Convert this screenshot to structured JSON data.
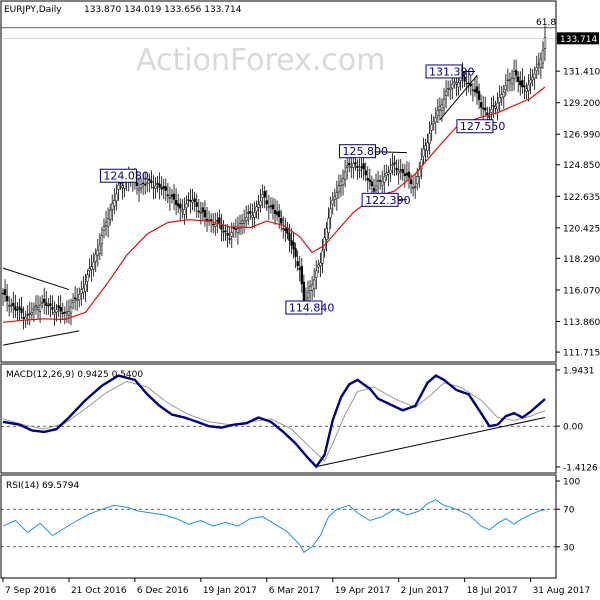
{
  "chart_data": [
    {
      "type": "candlestick",
      "title": "EURJPY,Daily",
      "ohlc": "133.870 134.019 133.656 133.714",
      "watermark": "ActionForex.com",
      "last_price_label": "133.714",
      "last_price": 133.714,
      "fib_label": "61.8",
      "fib_level": 134.45,
      "ylim": [
        111.3,
        135.7
      ],
      "yticks": [
        "133.714",
        "131.410",
        "129.200",
        "126.990",
        "124.850",
        "122.635",
        "120.425",
        "118.290",
        "116.070",
        "113.860",
        "111.715"
      ],
      "ytick_values": [
        133.714,
        131.41,
        129.2,
        126.99,
        124.85,
        122.635,
        120.425,
        118.29,
        116.07,
        113.86,
        111.715
      ],
      "xtick_labels": [
        "7 Sep 2016",
        "21 Oct 2016",
        "6 Dec 2016",
        "19 Jan 2017",
        "6 Mar 2017",
        "19 Apr 2017",
        "2 Jun 2017",
        "18 Jul 2017",
        "31 Aug 2017"
      ],
      "xtick_bars": [
        0,
        32,
        64,
        96,
        128,
        160,
        192,
        224,
        256
      ],
      "annotations": [
        {
          "label": "124.080",
          "value": 124.08,
          "bar": 56
        },
        {
          "label": "114.840",
          "value": 114.84,
          "bar": 146
        },
        {
          "label": "125.800",
          "value": 125.8,
          "bar": 172
        },
        {
          "label": "122.390",
          "value": 122.39,
          "bar": 183
        },
        {
          "label": "131.390",
          "value": 131.39,
          "bar": 214
        },
        {
          "label": "127.550",
          "value": 127.55,
          "bar": 229
        }
      ],
      "series": [
        {
          "name": "price",
          "color": "#000000"
        },
        {
          "name": "moving_average",
          "color": "#e01010"
        }
      ],
      "close_path": [
        [
          0,
          115.7
        ],
        [
          6,
          114.7
        ],
        [
          12,
          114.2
        ],
        [
          18,
          115.2
        ],
        [
          24,
          114.8
        ],
        [
          30,
          114.4
        ],
        [
          36,
          115.5
        ],
        [
          40,
          116.6
        ],
        [
          46,
          118.9
        ],
        [
          52,
          121.7
        ],
        [
          56,
          123.2
        ],
        [
          60,
          123.9
        ],
        [
          66,
          123.4
        ],
        [
          72,
          123.6
        ],
        [
          80,
          122.9
        ],
        [
          86,
          121.7
        ],
        [
          92,
          122.4
        ],
        [
          98,
          121.1
        ],
        [
          104,
          120.7
        ],
        [
          110,
          119.8
        ],
        [
          116,
          120.9
        ],
        [
          122,
          121.6
        ],
        [
          126,
          122.6
        ],
        [
          130,
          121.9
        ],
        [
          136,
          120.6
        ],
        [
          140,
          119.2
        ],
        [
          144,
          117.6
        ],
        [
          146,
          115.1
        ],
        [
          150,
          116.6
        ],
        [
          154,
          118.0
        ],
        [
          158,
          121.3
        ],
        [
          162,
          123.0
        ],
        [
          166,
          124.4
        ],
        [
          170,
          125.0
        ],
        [
          176,
          124.2
        ],
        [
          180,
          123.1
        ],
        [
          184,
          123.9
        ],
        [
          190,
          124.8
        ],
        [
          196,
          124.0
        ],
        [
          200,
          123.3
        ],
        [
          204,
          125.8
        ],
        [
          208,
          127.5
        ],
        [
          214,
          129.6
        ],
        [
          218,
          130.5
        ],
        [
          222,
          130.9
        ],
        [
          228,
          130.3
        ],
        [
          232,
          129.0
        ],
        [
          236,
          128.3
        ],
        [
          240,
          129.3
        ],
        [
          244,
          130.3
        ],
        [
          248,
          131.4
        ],
        [
          252,
          130.1
        ],
        [
          256,
          130.7
        ],
        [
          260,
          131.8
        ],
        [
          263,
          133.7
        ]
      ],
      "ma_path": [
        [
          0,
          113.8
        ],
        [
          10,
          113.95
        ],
        [
          20,
          114.05
        ],
        [
          30,
          114.0
        ],
        [
          40,
          114.5
        ],
        [
          50,
          116.4
        ],
        [
          60,
          118.5
        ],
        [
          70,
          120.0
        ],
        [
          80,
          120.8
        ],
        [
          90,
          121.0
        ],
        [
          100,
          120.9
        ],
        [
          110,
          120.5
        ],
        [
          120,
          120.45
        ],
        [
          128,
          120.9
        ],
        [
          136,
          120.6
        ],
        [
          144,
          119.8
        ],
        [
          150,
          118.7
        ],
        [
          156,
          119.2
        ],
        [
          162,
          120.2
        ],
        [
          170,
          121.5
        ],
        [
          180,
          122.6
        ],
        [
          190,
          123.0
        ],
        [
          200,
          124.2
        ],
        [
          210,
          125.9
        ],
        [
          220,
          127.5
        ],
        [
          230,
          128.1
        ],
        [
          240,
          128.5
        ],
        [
          248,
          129.0
        ],
        [
          256,
          129.5
        ],
        [
          263,
          130.3
        ]
      ],
      "trendlines": [
        {
          "name": "triangle-upper",
          "points": [
            [
              0,
              117.6
            ],
            [
              32,
              116.1
            ]
          ]
        },
        {
          "name": "triangle-lower",
          "points": [
            [
              0,
              112.2
            ],
            [
              37,
              113.2
            ]
          ]
        },
        {
          "name": "flag-top",
          "points": [
            [
              170,
              125.8
            ],
            [
              196,
              125.7
            ]
          ]
        },
        {
          "name": "flag-bottom",
          "points": [
            [
              184,
              122.4
            ],
            [
              196,
              122.4
            ]
          ]
        },
        {
          "name": "wedge-upper",
          "points": [
            [
              212,
              131.39
            ],
            [
              229,
              131.39
            ]
          ]
        },
        {
          "name": "wedge-lower",
          "points": [
            [
              212,
              128.0
            ],
            [
              230,
              131.1
            ]
          ]
        }
      ]
    },
    {
      "type": "line",
      "title": "MACD(12,26,9) 0.9425 0.5400",
      "ylim": [
        -1.4126,
        1.9431
      ],
      "ylim_labels": [
        "-1.4126",
        "0.00",
        "1.9431"
      ],
      "series": [
        {
          "name": "macd",
          "color": "#000080",
          "points": [
            [
              0,
              0.15
            ],
            [
              8,
              0.05
            ],
            [
              14,
              -0.15
            ],
            [
              20,
              -0.2
            ],
            [
              26,
              -0.1
            ],
            [
              32,
              0.3
            ],
            [
              40,
              0.9
            ],
            [
              48,
              1.4
            ],
            [
              56,
              1.75
            ],
            [
              64,
              1.6
            ],
            [
              70,
              1.1
            ],
            [
              76,
              0.7
            ],
            [
              82,
              0.4
            ],
            [
              88,
              0.3
            ],
            [
              94,
              0.15
            ],
            [
              100,
              0.0
            ],
            [
              106,
              -0.05
            ],
            [
              112,
              0.05
            ],
            [
              118,
              0.1
            ],
            [
              124,
              0.3
            ],
            [
              130,
              0.15
            ],
            [
              136,
              -0.2
            ],
            [
              142,
              -0.6
            ],
            [
              148,
              -1.1
            ],
            [
              152,
              -1.4
            ],
            [
              156,
              -1.0
            ],
            [
              160,
              0.2
            ],
            [
              164,
              1.0
            ],
            [
              168,
              1.45
            ],
            [
              172,
              1.6
            ],
            [
              178,
              1.3
            ],
            [
              182,
              0.95
            ],
            [
              188,
              0.75
            ],
            [
              194,
              0.55
            ],
            [
              200,
              0.7
            ],
            [
              206,
              1.5
            ],
            [
              210,
              1.75
            ],
            [
              214,
              1.6
            ],
            [
              220,
              1.25
            ],
            [
              226,
              1.1
            ],
            [
              232,
              0.45
            ],
            [
              236,
              0.0
            ],
            [
              240,
              0.05
            ],
            [
              244,
              0.35
            ],
            [
              248,
              0.45
            ],
            [
              252,
              0.3
            ],
            [
              256,
              0.5
            ],
            [
              260,
              0.75
            ],
            [
              263,
              0.94
            ]
          ]
        },
        {
          "name": "signal",
          "color": "#9a9a9a",
          "points": [
            [
              0,
              0.25
            ],
            [
              10,
              0.05
            ],
            [
              20,
              -0.1
            ],
            [
              30,
              0.1
            ],
            [
              40,
              0.6
            ],
            [
              50,
              1.15
            ],
            [
              60,
              1.55
            ],
            [
              70,
              1.35
            ],
            [
              80,
              0.8
            ],
            [
              90,
              0.4
            ],
            [
              100,
              0.15
            ],
            [
              110,
              0.05
            ],
            [
              120,
              0.15
            ],
            [
              130,
              0.25
            ],
            [
              140,
              -0.1
            ],
            [
              150,
              -0.8
            ],
            [
              156,
              -1.2
            ],
            [
              160,
              -0.6
            ],
            [
              166,
              0.4
            ],
            [
              172,
              1.2
            ],
            [
              180,
              1.35
            ],
            [
              190,
              0.95
            ],
            [
              200,
              0.65
            ],
            [
              208,
              1.1
            ],
            [
              214,
              1.5
            ],
            [
              222,
              1.35
            ],
            [
              232,
              0.9
            ],
            [
              240,
              0.3
            ],
            [
              248,
              0.2
            ],
            [
              256,
              0.35
            ],
            [
              263,
              0.54
            ]
          ]
        }
      ],
      "trendlines": [
        {
          "name": "macd-support",
          "points": [
            [
              152,
              -1.4
            ],
            [
              263,
              0.3
            ]
          ]
        }
      ]
    },
    {
      "type": "line",
      "title": "RSI(14) 69.5794",
      "ylim": [
        0,
        100
      ],
      "yticks": [
        "100",
        "70",
        "30",
        "0"
      ],
      "ytick_values": [
        100,
        70,
        30,
        0
      ],
      "series": [
        {
          "name": "rsi",
          "color": "#1e90ff",
          "points": [
            [
              0,
              52
            ],
            [
              6,
              58
            ],
            [
              12,
              45
            ],
            [
              18,
              55
            ],
            [
              24,
              42
            ],
            [
              30,
              50
            ],
            [
              36,
              58
            ],
            [
              42,
              65
            ],
            [
              48,
              70
            ],
            [
              54,
              74
            ],
            [
              60,
              72
            ],
            [
              66,
              68
            ],
            [
              72,
              66
            ],
            [
              78,
              64
            ],
            [
              84,
              60
            ],
            [
              90,
              54
            ],
            [
              96,
              58
            ],
            [
              102,
              52
            ],
            [
              108,
              56
            ],
            [
              114,
              52
            ],
            [
              120,
              60
            ],
            [
              126,
              62
            ],
            [
              132,
              54
            ],
            [
              138,
              46
            ],
            [
              144,
              32
            ],
            [
              146,
              24
            ],
            [
              150,
              30
            ],
            [
              154,
              42
            ],
            [
              158,
              62
            ],
            [
              162,
              70
            ],
            [
              168,
              74
            ],
            [
              172,
              66
            ],
            [
              178,
              58
            ],
            [
              184,
              62
            ],
            [
              190,
              70
            ],
            [
              196,
              64
            ],
            [
              202,
              68
            ],
            [
              206,
              76
            ],
            [
              210,
              80
            ],
            [
              214,
              74
            ],
            [
              220,
              70
            ],
            [
              226,
              64
            ],
            [
              232,
              52
            ],
            [
              236,
              48
            ],
            [
              240,
              55
            ],
            [
              244,
              60
            ],
            [
              248,
              54
            ],
            [
              252,
              60
            ],
            [
              256,
              64
            ],
            [
              260,
              68
            ],
            [
              263,
              69.58
            ]
          ]
        }
      ]
    }
  ]
}
